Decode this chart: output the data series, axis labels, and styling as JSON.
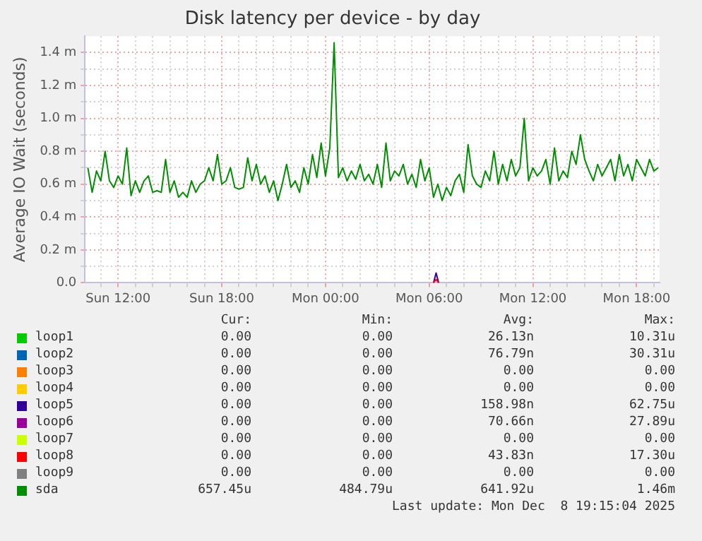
{
  "chart_data": {
    "type": "line",
    "title": "Disk latency per device - by day",
    "ylabel": "Average IO Wait (seconds)",
    "xlim": [
      "2025-12-07T10:05",
      "2025-12-08T19:20"
    ],
    "xticks": [
      {
        "value": "2025-12-07T11:00",
        "label": null
      },
      {
        "value": "2025-12-07T12:00",
        "label": "Sun 12:00"
      },
      {
        "value": "2025-12-07T13:00",
        "label": null
      },
      {
        "value": "2025-12-07T14:00",
        "label": null
      },
      {
        "value": "2025-12-07T15:00",
        "label": null
      },
      {
        "value": "2025-12-07T16:00",
        "label": null
      },
      {
        "value": "2025-12-07T17:00",
        "label": null
      },
      {
        "value": "2025-12-07T18:00",
        "label": "Sun 18:00"
      },
      {
        "value": "2025-12-07T19:00",
        "label": null
      },
      {
        "value": "2025-12-07T20:00",
        "label": null
      },
      {
        "value": "2025-12-07T21:00",
        "label": null
      },
      {
        "value": "2025-12-07T22:00",
        "label": null
      },
      {
        "value": "2025-12-07T23:00",
        "label": null
      },
      {
        "value": "2025-12-08T00:00",
        "label": "Mon 00:00"
      },
      {
        "value": "2025-12-08T01:00",
        "label": null
      },
      {
        "value": "2025-12-08T02:00",
        "label": null
      },
      {
        "value": "2025-12-08T03:00",
        "label": null
      },
      {
        "value": "2025-12-08T04:00",
        "label": null
      },
      {
        "value": "2025-12-08T05:00",
        "label": null
      },
      {
        "value": "2025-12-08T06:00",
        "label": "Mon 06:00"
      },
      {
        "value": "2025-12-08T07:00",
        "label": null
      },
      {
        "value": "2025-12-08T08:00",
        "label": null
      },
      {
        "value": "2025-12-08T09:00",
        "label": null
      },
      {
        "value": "2025-12-08T10:00",
        "label": null
      },
      {
        "value": "2025-12-08T11:00",
        "label": null
      },
      {
        "value": "2025-12-08T12:00",
        "label": "Mon 12:00"
      },
      {
        "value": "2025-12-08T13:00",
        "label": null
      },
      {
        "value": "2025-12-08T14:00",
        "label": null
      },
      {
        "value": "2025-12-08T15:00",
        "label": null
      },
      {
        "value": "2025-12-08T16:00",
        "label": null
      },
      {
        "value": "2025-12-08T17:00",
        "label": null
      },
      {
        "value": "2025-12-08T18:00",
        "label": "Mon 18:00"
      },
      {
        "value": "2025-12-08T19:00",
        "label": null
      }
    ],
    "ylim": [
      0,
      1.5
    ],
    "yticks": [
      {
        "value": 0,
        "label": "0.0"
      },
      {
        "value": 0.1,
        "label": null
      },
      {
        "value": 0.2,
        "label": "0.2 m"
      },
      {
        "value": 0.3,
        "label": null
      },
      {
        "value": 0.4,
        "label": "0.4 m"
      },
      {
        "value": 0.5,
        "label": null
      },
      {
        "value": 0.6,
        "label": "0.6 m"
      },
      {
        "value": 0.7,
        "label": null
      },
      {
        "value": 0.8,
        "label": "0.8 m"
      },
      {
        "value": 0.9,
        "label": null
      },
      {
        "value": 1.0,
        "label": "1.0 m"
      },
      {
        "value": 1.1,
        "label": null
      },
      {
        "value": 1.2,
        "label": "1.2 m"
      },
      {
        "value": 1.3,
        "label": null
      },
      {
        "value": 1.4,
        "label": "1.4 m"
      }
    ],
    "grid": true,
    "legend": "bottom",
    "marker": "none",
    "line_style": "solid",
    "series": [
      {
        "name": "loop1",
        "color": "#00cc00"
      },
      {
        "name": "loop2",
        "color": "#0066b3"
      },
      {
        "name": "loop3",
        "color": "#ff8000"
      },
      {
        "name": "loop4",
        "color": "#ffcc00"
      },
      {
        "name": "loop5",
        "color": "#330099",
        "x": [
          "2025-12-08T06:15",
          "2025-12-08T06:24",
          "2025-12-08T06:33"
        ],
        "values": [
          0,
          0.06,
          0
        ]
      },
      {
        "name": "loop6",
        "color": "#990099"
      },
      {
        "name": "loop7",
        "color": "#ccff00"
      },
      {
        "name": "loop8",
        "color": "#ff0000",
        "x": [
          "2025-12-08T06:15",
          "2025-12-08T06:24",
          "2025-12-08T06:33"
        ],
        "values": [
          0,
          0.02,
          0
        ]
      },
      {
        "name": "loop9",
        "color": "#808080"
      },
      {
        "name": "sda",
        "color": "#008f00",
        "x": [
          "2025-12-07T10:15",
          "2025-12-07T10:30",
          "2025-12-07T10:45",
          "2025-12-07T11:00",
          "2025-12-07T11:15",
          "2025-12-07T11:30",
          "2025-12-07T11:45",
          "2025-12-07T12:00",
          "2025-12-07T12:15",
          "2025-12-07T12:30",
          "2025-12-07T12:45",
          "2025-12-07T13:00",
          "2025-12-07T13:15",
          "2025-12-07T13:30",
          "2025-12-07T13:45",
          "2025-12-07T14:00",
          "2025-12-07T14:15",
          "2025-12-07T14:30",
          "2025-12-07T14:45",
          "2025-12-07T15:00",
          "2025-12-07T15:15",
          "2025-12-07T15:30",
          "2025-12-07T15:45",
          "2025-12-07T16:00",
          "2025-12-07T16:15",
          "2025-12-07T16:30",
          "2025-12-07T16:45",
          "2025-12-07T17:00",
          "2025-12-07T17:15",
          "2025-12-07T17:30",
          "2025-12-07T17:45",
          "2025-12-07T18:00",
          "2025-12-07T18:15",
          "2025-12-07T18:30",
          "2025-12-07T18:45",
          "2025-12-07T19:00",
          "2025-12-07T19:15",
          "2025-12-07T19:30",
          "2025-12-07T19:45",
          "2025-12-07T20:00",
          "2025-12-07T20:15",
          "2025-12-07T20:30",
          "2025-12-07T20:45",
          "2025-12-07T21:00",
          "2025-12-07T21:15",
          "2025-12-07T21:30",
          "2025-12-07T21:45",
          "2025-12-07T22:00",
          "2025-12-07T22:15",
          "2025-12-07T22:30",
          "2025-12-07T22:45",
          "2025-12-07T23:00",
          "2025-12-07T23:15",
          "2025-12-07T23:30",
          "2025-12-07T23:45",
          "2025-12-08T00:00",
          "2025-12-08T00:15",
          "2025-12-08T00:30",
          "2025-12-08T00:45",
          "2025-12-08T01:00",
          "2025-12-08T01:15",
          "2025-12-08T01:30",
          "2025-12-08T01:45",
          "2025-12-08T02:00",
          "2025-12-08T02:15",
          "2025-12-08T02:30",
          "2025-12-08T02:45",
          "2025-12-08T03:00",
          "2025-12-08T03:15",
          "2025-12-08T03:30",
          "2025-12-08T03:45",
          "2025-12-08T04:00",
          "2025-12-08T04:15",
          "2025-12-08T04:30",
          "2025-12-08T04:45",
          "2025-12-08T05:00",
          "2025-12-08T05:15",
          "2025-12-08T05:30",
          "2025-12-08T05:45",
          "2025-12-08T06:00",
          "2025-12-08T06:15",
          "2025-12-08T06:30",
          "2025-12-08T06:45",
          "2025-12-08T07:00",
          "2025-12-08T07:15",
          "2025-12-08T07:30",
          "2025-12-08T07:45",
          "2025-12-08T08:00",
          "2025-12-08T08:15",
          "2025-12-08T08:30",
          "2025-12-08T08:45",
          "2025-12-08T09:00",
          "2025-12-08T09:15",
          "2025-12-08T09:30",
          "2025-12-08T09:45",
          "2025-12-08T10:00",
          "2025-12-08T10:15",
          "2025-12-08T10:30",
          "2025-12-08T10:45",
          "2025-12-08T11:00",
          "2025-12-08T11:15",
          "2025-12-08T11:30",
          "2025-12-08T11:45",
          "2025-12-08T12:00",
          "2025-12-08T12:15",
          "2025-12-08T12:30",
          "2025-12-08T12:45",
          "2025-12-08T13:00",
          "2025-12-08T13:15",
          "2025-12-08T13:30",
          "2025-12-08T13:45",
          "2025-12-08T14:00",
          "2025-12-08T14:15",
          "2025-12-08T14:30",
          "2025-12-08T14:45",
          "2025-12-08T15:00",
          "2025-12-08T15:15",
          "2025-12-08T15:30",
          "2025-12-08T15:45",
          "2025-12-08T16:00",
          "2025-12-08T16:15",
          "2025-12-08T16:30",
          "2025-12-08T16:45",
          "2025-12-08T17:00",
          "2025-12-08T17:15",
          "2025-12-08T17:30",
          "2025-12-08T17:45",
          "2025-12-08T18:00",
          "2025-12-08T18:15",
          "2025-12-08T18:30",
          "2025-12-08T18:45",
          "2025-12-08T19:00",
          "2025-12-08T19:15"
        ],
        "values": [
          0.7,
          0.55,
          0.68,
          0.62,
          0.8,
          0.62,
          0.58,
          0.65,
          0.6,
          0.82,
          0.53,
          0.62,
          0.55,
          0.62,
          0.65,
          0.55,
          0.56,
          0.55,
          0.75,
          0.55,
          0.62,
          0.52,
          0.55,
          0.52,
          0.62,
          0.55,
          0.6,
          0.62,
          0.7,
          0.62,
          0.78,
          0.6,
          0.62,
          0.7,
          0.58,
          0.57,
          0.58,
          0.76,
          0.62,
          0.72,
          0.6,
          0.65,
          0.55,
          0.62,
          0.5,
          0.6,
          0.72,
          0.58,
          0.62,
          0.55,
          0.7,
          0.6,
          0.78,
          0.64,
          0.85,
          0.65,
          0.82,
          1.46,
          0.64,
          0.7,
          0.62,
          0.68,
          0.63,
          0.72,
          0.62,
          0.66,
          0.6,
          0.72,
          0.58,
          0.85,
          0.62,
          0.68,
          0.65,
          0.72,
          0.6,
          0.66,
          0.58,
          0.75,
          0.62,
          0.7,
          0.52,
          0.6,
          0.5,
          0.58,
          0.53,
          0.62,
          0.66,
          0.55,
          0.84,
          0.65,
          0.6,
          0.58,
          0.68,
          0.62,
          0.8,
          0.6,
          0.72,
          0.62,
          0.75,
          0.65,
          0.7,
          1.0,
          0.62,
          0.7,
          0.65,
          0.68,
          0.75,
          0.6,
          0.82,
          0.62,
          0.68,
          0.64,
          0.8,
          0.72,
          0.9,
          0.75,
          0.68,
          0.62,
          0.72,
          0.65,
          0.7,
          0.75,
          0.62,
          0.78,
          0.65,
          0.72,
          0.62,
          0.75,
          0.7,
          0.65,
          0.75,
          0.68,
          0.7
        ]
      }
    ],
    "annotations": [
      "Cur:",
      "Min:",
      "Avg:",
      "Max:",
      "0.00",
      "0.00",
      "26.13n",
      "10.31u",
      "0.00",
      "0.00",
      "76.79n",
      "30.31u",
      "0.00",
      "0.00",
      "0.00",
      "0.00",
      "0.00",
      "0.00",
      "0.00",
      "0.00",
      "0.00",
      "0.00",
      "158.98n",
      "62.75u",
      "0.00",
      "0.00",
      "70.66n",
      "27.89u",
      "0.00",
      "0.00",
      "0.00",
      "0.00",
      "0.00",
      "0.00",
      "43.83n",
      "17.30u",
      "0.00",
      "0.00",
      "0.00",
      "0.00",
      "657.45u",
      "484.79u",
      "641.92u",
      "1.46m",
      "Last update: Mon Dec  8 19:15:04 2025"
    ]
  }
}
